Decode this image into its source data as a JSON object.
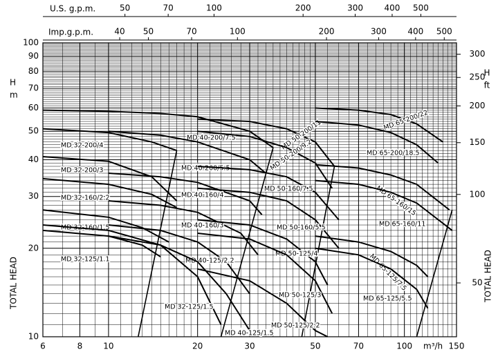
{
  "chart_data": {
    "type": "line",
    "x_label": "m³/h",
    "y_label_unit": "m",
    "y_label": "H",
    "y2_label": "H",
    "y2_label_unit": "ft",
    "side_label": "TOTAL HEAD",
    "top_label_us": "U.S. g.p.m.",
    "top_label_imp": "Imp.g.p.m.",
    "log_x": true,
    "log_y": true,
    "grid": true,
    "color": "#000000",
    "xlim": [
      6,
      150
    ],
    "xticks": [
      6,
      8,
      10,
      20,
      30,
      50,
      70,
      100,
      150
    ],
    "ylim": [
      10,
      100
    ],
    "yticks": [
      10,
      20,
      30,
      40,
      50,
      60,
      70,
      80,
      90,
      100
    ],
    "y2lim": [
      32.8,
      328
    ],
    "y2ticks": [
      50,
      100,
      150,
      200,
      250,
      300
    ],
    "uslim": [
      26.4,
      660
    ],
    "usticks": [
      50,
      70,
      100,
      200,
      300,
      400,
      500
    ],
    "implim": [
      22,
      550
    ],
    "impticks": [
      40,
      50,
      70,
      100,
      200,
      300,
      400,
      500
    ],
    "series": [
      {
        "name": "MD 32-200/4",
        "x": [
          6,
          10,
          14,
          17
        ],
        "values": [
          51,
          49.5,
          46,
          43
        ]
      },
      {
        "name": "MD 32-200/3",
        "x": [
          6,
          10,
          14,
          17
        ],
        "values": [
          41,
          39.5,
          35,
          29
        ]
      },
      {
        "name": "MD 32-160/2.2",
        "x": [
          6,
          10,
          14,
          17
        ],
        "values": [
          34.5,
          33,
          30.5,
          27.5
        ]
      },
      {
        "name": "MD 32-160/1.5",
        "x": [
          6,
          10,
          13,
          16
        ],
        "values": [
          27,
          25.5,
          23.5,
          21
        ]
      },
      {
        "name": "MD 32-125/1.1",
        "x": [
          6,
          10,
          13,
          15
        ],
        "values": [
          23,
          22,
          20.5,
          18.7
        ]
      },
      {
        "name": "MD 32-125/1.5",
        "x": [
          6,
          10,
          15,
          20,
          24
        ],
        "values": [
          24,
          23,
          20.5,
          16,
          11
        ]
      },
      {
        "name": "MD 40-200/7.5",
        "x": [
          6,
          10,
          15,
          20,
          30,
          36
        ],
        "values": [
          59,
          58.5,
          57.5,
          56,
          50,
          44
        ]
      },
      {
        "name": "MD 40-200/5.5",
        "x": [
          10,
          15,
          20,
          30,
          34
        ],
        "values": [
          50,
          48.5,
          46,
          40,
          36
        ]
      },
      {
        "name": "MD 40-160/4",
        "x": [
          10,
          15,
          20,
          30,
          33
        ],
        "values": [
          36,
          35,
          33.5,
          29,
          26
        ]
      },
      {
        "name": "MD 40-160/3",
        "x": [
          10,
          15,
          20,
          28,
          32
        ],
        "values": [
          29,
          28,
          26.5,
          22.5,
          19
        ]
      },
      {
        "name": "MD 40-125/2.2",
        "x": [
          10,
          15,
          20,
          25,
          30
        ],
        "values": [
          24,
          23,
          21,
          18,
          14
        ]
      },
      {
        "name": "MD 40-125/1.5",
        "x": [
          10,
          15,
          20,
          25,
          30
        ],
        "values": [
          22,
          20.5,
          18,
          14,
          10.5
        ]
      },
      {
        "name": "MD 50-200/11",
        "x": [
          20,
          30,
          40,
          50,
          58
        ],
        "values": [
          55,
          54,
          51,
          46,
          38
        ]
      },
      {
        "name": "MD 50-200/9.2",
        "x": [
          20,
          30,
          40,
          50,
          57
        ],
        "values": [
          50,
          48,
          44,
          39,
          32
        ]
      },
      {
        "name": "MD 50-160/7.5",
        "x": [
          20,
          30,
          40,
          50,
          60
        ],
        "values": [
          38,
          37,
          35,
          31,
          25
        ]
      },
      {
        "name": "MD 50-160/5.5",
        "x": [
          20,
          30,
          40,
          50,
          60
        ],
        "values": [
          32,
          31,
          29,
          25,
          20
        ]
      },
      {
        "name": "MD 50-125/4",
        "x": [
          20,
          30,
          40,
          50,
          55
        ],
        "values": [
          25,
          24,
          21.5,
          18,
          15
        ]
      },
      {
        "name": "MD 50-125/3",
        "x": [
          20,
          30,
          40,
          50,
          57
        ],
        "values": [
          22.5,
          21.5,
          19,
          15.5,
          12
        ]
      },
      {
        "name": "MD 50-125/2.2",
        "x": [
          20,
          30,
          40,
          50,
          55
        ],
        "values": [
          17,
          15.5,
          13,
          10.5,
          10
        ]
      },
      {
        "name": "MD 65-200/22",
        "x": [
          50,
          70,
          90,
          110,
          135
        ],
        "values": [
          60,
          59,
          57,
          53,
          46
        ]
      },
      {
        "name": "MD 65-200/18.5",
        "x": [
          50,
          70,
          90,
          110,
          130
        ],
        "values": [
          54,
          52.5,
          49.5,
          45,
          39
        ]
      },
      {
        "name": "MD 65-160/15",
        "x": [
          50,
          70,
          90,
          110,
          142
        ],
        "values": [
          38.5,
          37.5,
          35.5,
          33,
          27
        ]
      },
      {
        "name": "MD 65-160/11",
        "x": [
          50,
          70,
          90,
          110,
          145
        ],
        "values": [
          34,
          33,
          31,
          28.5,
          23
        ]
      },
      {
        "name": "MD 65-125/7.5",
        "x": [
          50,
          70,
          90,
          110,
          120
        ],
        "values": [
          22,
          21,
          19.5,
          17.5,
          16
        ]
      },
      {
        "name": "MD 65-125/5.5",
        "x": [
          50,
          70,
          90,
          110,
          120
        ],
        "values": [
          20,
          19,
          17,
          14.5,
          12.5
        ]
      }
    ],
    "limit_lines": [
      {
        "x": [
          17,
          12.6
        ],
        "values": [
          43,
          10
        ]
      },
      {
        "x": [
          36,
          24
        ],
        "values": [
          44,
          10
        ]
      },
      {
        "x": [
          58,
          45
        ],
        "values": [
          38,
          10
        ]
      },
      {
        "x": [
          145,
          110
        ],
        "values": [
          27,
          10
        ]
      }
    ]
  }
}
